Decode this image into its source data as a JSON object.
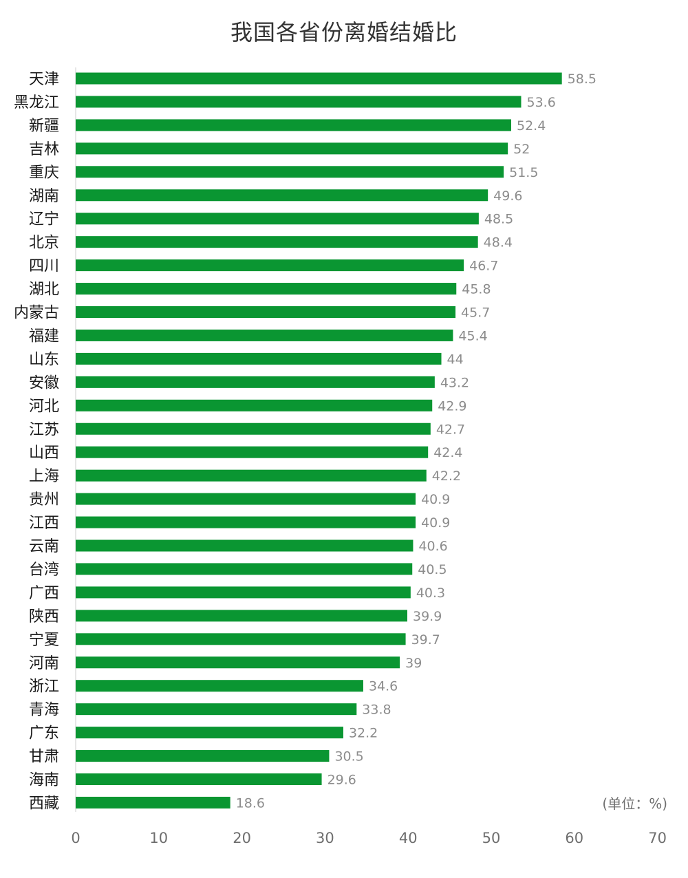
{
  "chart_data": {
    "type": "bar",
    "orientation": "horizontal",
    "title": "我国各省份离婚结婚比",
    "unit_note": "(单位：%)",
    "categories": [
      "天津",
      "黑龙江",
      "新疆",
      "吉林",
      "重庆",
      "湖南",
      "辽宁",
      "北京",
      "四川",
      "湖北",
      "内蒙古",
      "福建",
      "山东",
      "安徽",
      "河北",
      "江苏",
      "山西",
      "上海",
      "贵州",
      "江西",
      "云南",
      "台湾",
      "广西",
      "陕西",
      "宁夏",
      "河南",
      "浙江",
      "青海",
      "广东",
      "甘肃",
      "海南",
      "西藏"
    ],
    "values": [
      58.5,
      53.6,
      52.4,
      52,
      51.5,
      49.6,
      48.5,
      48.4,
      46.7,
      45.8,
      45.7,
      45.4,
      44,
      43.2,
      42.9,
      42.7,
      42.4,
      42.2,
      40.9,
      40.9,
      40.6,
      40.5,
      40.3,
      39.9,
      39.7,
      39,
      34.6,
      33.8,
      32.2,
      30.5,
      29.6,
      18.6
    ],
    "value_labels": [
      "58.5",
      "53.6",
      "52.4",
      "52",
      "51.5",
      "49.6",
      "48.5",
      "48.4",
      "46.7",
      "45.8",
      "45.7",
      "45.4",
      "44",
      "43.2",
      "42.9",
      "42.7",
      "42.4",
      "42.2",
      "40.9",
      "40.9",
      "40.6",
      "40.5",
      "40.3",
      "39.9",
      "39.7",
      "39",
      "34.6",
      "33.8",
      "32.2",
      "30.5",
      "29.6",
      "18.6"
    ],
    "xlim": [
      0,
      70
    ],
    "x_ticks": [
      "0",
      "10",
      "20",
      "30",
      "40",
      "50",
      "60",
      "70"
    ],
    "grid": false,
    "colors": {
      "bar": "#0a9632",
      "axis": "#cccccc"
    }
  }
}
